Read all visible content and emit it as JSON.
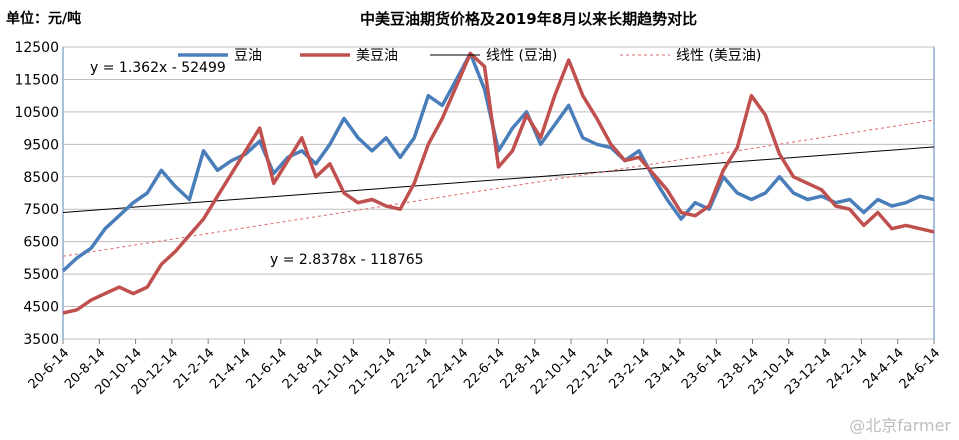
{
  "unit_label": "单位：元/吨",
  "chart_title": "中美豆油期货价格及2019年8月以来长期趋势对比",
  "watermark": "@北京farmer",
  "colors": {
    "domestic": "#4a7ebb",
    "us": "#c0504d",
    "trend_domestic": "#000000",
    "trend_us": "#e06666",
    "grid": "#bfbfbf",
    "frame": "#4f81bd"
  },
  "chart_data": {
    "type": "line",
    "title": "中美豆油期货价格及2019年8月以来长期趋势对比",
    "ylabel": "单位：元/吨",
    "ylim": [
      3500,
      12500
    ],
    "yticks": [
      3500,
      4500,
      5500,
      6500,
      7500,
      8500,
      9500,
      10500,
      11500,
      12500
    ],
    "grid": true,
    "legend_placement": "top",
    "xticks": [
      "20-6-14",
      "20-8-14",
      "20-10-14",
      "20-12-14",
      "21-2-14",
      "21-4-14",
      "21-6-14",
      "21-8-14",
      "21-10-14",
      "21-12-14",
      "22-2-14",
      "22-4-14",
      "22-6-14",
      "22-8-14",
      "22-10-14",
      "22-12-14",
      "23-2-14",
      "23-4-14",
      "23-6-14",
      "23-8-14",
      "23-10-14",
      "23-12-14",
      "24-2-14",
      "24-4-14",
      "24-6-14"
    ],
    "series": [
      {
        "name": "豆油",
        "color": "#4a7ebb",
        "values": [
          5600,
          6000,
          6300,
          6900,
          7300,
          7700,
          8000,
          8700,
          8200,
          7800,
          9300,
          8700,
          9000,
          9200,
          9600,
          8600,
          9100,
          9300,
          8900,
          9500,
          10300,
          9700,
          9300,
          9700,
          9100,
          9700,
          11000,
          10700,
          11500,
          12300,
          11200,
          9300,
          10000,
          10500,
          9500,
          10100,
          10700,
          9700,
          9500,
          9400,
          9000,
          9300,
          8500,
          7800,
          7200,
          7700,
          7500,
          8500,
          8000,
          7800,
          8000,
          8500,
          8000,
          7800,
          7900,
          7700,
          7800,
          7400,
          7800,
          7600,
          7700,
          7900,
          7800
        ]
      },
      {
        "name": "美豆油",
        "color": "#c0504d",
        "values": [
          4300,
          4400,
          4700,
          4900,
          5100,
          4900,
          5100,
          5800,
          6200,
          6700,
          7200,
          7900,
          8600,
          9300,
          10000,
          8300,
          9000,
          9700,
          8500,
          8900,
          8000,
          7700,
          7800,
          7600,
          7500,
          8300,
          9500,
          10300,
          11300,
          12300,
          11900,
          8800,
          9300,
          10400,
          9700,
          11000,
          12100,
          11000,
          10300,
          9500,
          9000,
          9100,
          8600,
          8100,
          7400,
          7300,
          7600,
          8700,
          9400,
          11000,
          10400,
          9200,
          8500,
          8300,
          8100,
          7600,
          7500,
          7000,
          7400,
          6900,
          7000,
          6900,
          6800
        ]
      },
      {
        "name": "线性 (豆油)",
        "color": "#000000",
        "dash": "",
        "trend": [
          7400,
          9420
        ],
        "equation": "y = 1.362x - 52499"
      },
      {
        "name": "线性 (美豆油)",
        "color": "#e06666",
        "dash": "3,3",
        "trend": [
          6050,
          10250
        ],
        "equation": "y = 2.8378x - 118765"
      }
    ]
  }
}
